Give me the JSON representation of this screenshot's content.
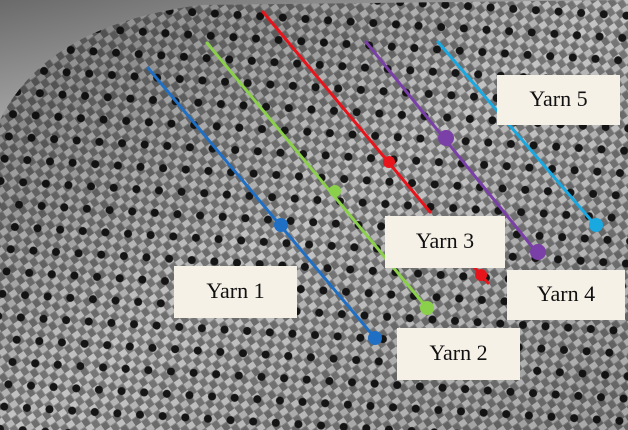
{
  "labels": [
    "Yarn 1",
    "Yarn 2",
    "Yarn 3",
    "Yarn 4",
    "Yarn 5"
  ]
}
